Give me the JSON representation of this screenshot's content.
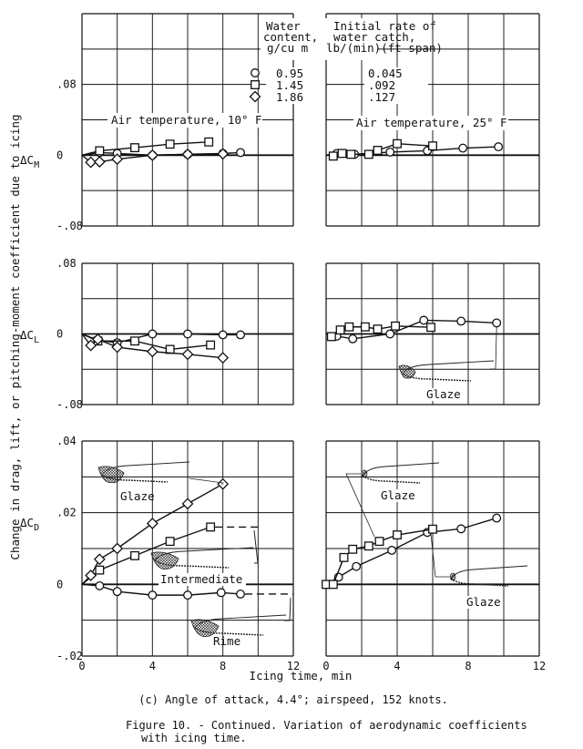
{
  "y_axis_label": "Change in drag, lift, or pitching-moment coefficient due to icing",
  "x_axis_label": "Icing time, min",
  "caption": "(c) Angle of attack, 4.4°; airspeed, 152 knots.",
  "figure_title_line1": "Figure 10. - Continued.  Variation of aerodynamic coefficients",
  "figure_title_line2": "with icing time.",
  "legend": {
    "col1_header": [
      "Water",
      "content,",
      "g/cu m"
    ],
    "col2_header": [
      "Initial rate of",
      "water catch,",
      "lb/(min)(ft span)"
    ],
    "entries": [
      {
        "marker": "circle",
        "water_content": "0.95",
        "catch_rate": "0.045"
      },
      {
        "marker": "square",
        "water_content": "1.45",
        "catch_rate": ".092"
      },
      {
        "marker": "diamond",
        "water_content": "1.86",
        "catch_rate": ".127"
      }
    ]
  },
  "temp_labels": {
    "left": "Air temperature, 10° F",
    "right": "Air temperature, 25° F"
  },
  "row_labels": {
    "cm": "ΔC",
    "cm_sub": "M",
    "cl": "ΔC",
    "cl_sub": "L",
    "cd": "ΔC",
    "cd_sub": "D"
  },
  "tick_labels": {
    "cm": [
      ".08",
      "0",
      "-.08"
    ],
    "cl": [
      ".08",
      "0",
      "-.08"
    ],
    "cd": [
      ".04",
      ".02",
      "0",
      "-.02"
    ],
    "x": [
      "0",
      "4",
      "8",
      "12"
    ]
  },
  "annotations": {
    "left_cd_glaze": "Glaze",
    "left_cd_intermediate": "Intermediate",
    "left_cd_rime": "Rime",
    "right_cl_glaze": "Glaze",
    "right_cd_glaze_upper": "Glaze",
    "right_cd_glaze_lower": "Glaze"
  },
  "chart_data": [
    {
      "type": "line",
      "panel": "cm-10F",
      "ylabel": "ΔCM",
      "xlim": [
        0,
        12
      ],
      "ylim": [
        -0.08,
        0.16
      ],
      "grid": true,
      "series": [
        {
          "name": "0.95",
          "marker": "circle",
          "points": [
            [
              0,
              0
            ],
            [
              1,
              0.003
            ],
            [
              2,
              0.002
            ],
            [
              4,
              0
            ],
            [
              6,
              0.001
            ],
            [
              8,
              0.002
            ],
            [
              9,
              0.003
            ]
          ]
        },
        {
          "name": "1.45",
          "marker": "square",
          "points": [
            [
              0,
              0
            ],
            [
              1,
              0.005
            ],
            [
              3,
              0.0085
            ],
            [
              5,
              0.0125
            ],
            [
              7.2,
              0.015
            ]
          ]
        },
        {
          "name": "1.86",
          "marker": "diamond",
          "points": [
            [
              0,
              0
            ],
            [
              0.5,
              -0.008
            ],
            [
              1,
              -0.0075
            ],
            [
              2,
              -0.0045
            ],
            [
              4,
              0
            ],
            [
              6,
              0.001
            ],
            [
              8,
              0.0015
            ]
          ]
        }
      ]
    },
    {
      "type": "line",
      "panel": "cm-25F",
      "ylabel": "ΔCM",
      "xlim": [
        0,
        12
      ],
      "ylim": [
        -0.08,
        0.16
      ],
      "grid": true,
      "series": [
        {
          "name": "0.95",
          "marker": "circle",
          "points": [
            [
              0,
              0
            ],
            [
              0.6,
              0.002
            ],
            [
              1.6,
              0.001
            ],
            [
              3.6,
              0.0035
            ],
            [
              5.7,
              0.005
            ],
            [
              7.7,
              0.008
            ],
            [
              9.7,
              0.0095
            ]
          ]
        },
        {
          "name": "1.45",
          "marker": "square",
          "points": [
            [
              0.4,
              -0.001
            ],
            [
              0.9,
              0.002
            ],
            [
              1.4,
              0.001
            ],
            [
              2.4,
              0.001
            ],
            [
              2.9,
              0.0055
            ],
            [
              4,
              0.013
            ],
            [
              6,
              0.0105
            ]
          ]
        }
      ]
    },
    {
      "type": "line",
      "panel": "cl-10F",
      "ylabel": "ΔCL",
      "xlim": [
        0,
        12
      ],
      "ylim": [
        -0.08,
        0.08
      ],
      "grid": true,
      "series": [
        {
          "name": "0.95",
          "marker": "circle",
          "points": [
            [
              0,
              0
            ],
            [
              0.9,
              -0.007
            ],
            [
              2,
              -0.01
            ],
            [
              4,
              0
            ],
            [
              6,
              0
            ],
            [
              8,
              -0.001
            ],
            [
              9,
              -0.001
            ]
          ]
        },
        {
          "name": "1.45",
          "marker": "square",
          "points": [
            [
              0,
              0
            ],
            [
              0.9,
              -0.008
            ],
            [
              3,
              -0.008
            ],
            [
              5,
              -0.0175
            ],
            [
              7.3,
              -0.0125
            ]
          ]
        },
        {
          "name": "1.86",
          "marker": "diamond",
          "points": [
            [
              0,
              0
            ],
            [
              0.5,
              -0.013
            ],
            [
              0.9,
              -0.006
            ],
            [
              2,
              -0.015
            ],
            [
              4,
              -0.02
            ],
            [
              6,
              -0.023
            ],
            [
              8,
              -0.027
            ]
          ]
        }
      ]
    },
    {
      "type": "line",
      "panel": "cl-25F",
      "ylabel": "ΔCL",
      "xlim": [
        0,
        12
      ],
      "ylim": [
        -0.08,
        0.08
      ],
      "grid": true,
      "series": [
        {
          "name": "0.95",
          "marker": "circle",
          "points": [
            [
              0,
              0
            ],
            [
              0.6,
              -0.0025
            ],
            [
              1.5,
              -0.0055
            ],
            [
              3.6,
              0
            ],
            [
              5.5,
              0.0155
            ],
            [
              7.6,
              0.0145
            ],
            [
              9.6,
              0.0125
            ]
          ]
        },
        {
          "name": "1.45",
          "marker": "square",
          "points": [
            [
              0.3,
              -0.003
            ],
            [
              0.8,
              0.0045
            ],
            [
              1.3,
              0.008
            ],
            [
              2.2,
              0.008
            ],
            [
              2.9,
              0.0055
            ],
            [
              3.9,
              0.009
            ],
            [
              5.9,
              0.0075
            ]
          ]
        }
      ]
    },
    {
      "type": "line",
      "panel": "cd-10F",
      "ylabel": "ΔCD",
      "xlabel": "Icing time, min",
      "xlim": [
        0,
        12
      ],
      "ylim": [
        -0.02,
        0.04
      ],
      "grid": true,
      "series": [
        {
          "name": "0.95",
          "marker": "circle",
          "points": [
            [
              0,
              0
            ],
            [
              1,
              -0.0004
            ],
            [
              2,
              -0.002
            ],
            [
              4,
              -0.003
            ],
            [
              6,
              -0.003
            ],
            [
              7.9,
              -0.0023
            ],
            [
              9,
              -0.0027
            ]
          ],
          "dashed_extension_to": 12
        },
        {
          "name": "1.45",
          "marker": "square",
          "points": [
            [
              0,
              0
            ],
            [
              1,
              0.004
            ],
            [
              3,
              0.008
            ],
            [
              5,
              0.012
            ],
            [
              7.3,
              0.016
            ]
          ],
          "dashed_extension_to": 10
        },
        {
          "name": "1.86",
          "marker": "diamond",
          "points": [
            [
              0,
              0
            ],
            [
              0.5,
              0.0025
            ],
            [
              1,
              0.007
            ],
            [
              2,
              0.01
            ],
            [
              4,
              0.017
            ],
            [
              6,
              0.0225
            ],
            [
              8,
              0.028
            ]
          ]
        }
      ]
    },
    {
      "type": "line",
      "panel": "cd-25F",
      "ylabel": "ΔCD",
      "xlabel": "Icing time, min",
      "xlim": [
        0,
        12
      ],
      "ylim": [
        -0.02,
        0.04
      ],
      "grid": true,
      "series": [
        {
          "name": "0.95",
          "marker": "circle",
          "points": [
            [
              0,
              0
            ],
            [
              0.7,
              0.002
            ],
            [
              1.7,
              0.005
            ],
            [
              3.7,
              0.0095
            ],
            [
              5.7,
              0.0145
            ],
            [
              7.6,
              0.0155
            ],
            [
              9.6,
              0.0185
            ]
          ]
        },
        {
          "name": "1.45",
          "marker": "square",
          "points": [
            [
              0,
              0
            ],
            [
              0.4,
              0
            ],
            [
              1,
              0.0075
            ],
            [
              1.5,
              0.0098
            ],
            [
              2.4,
              0.0107
            ],
            [
              3,
              0.012
            ],
            [
              4,
              0.0138
            ],
            [
              6,
              0.0154
            ]
          ]
        }
      ]
    }
  ]
}
